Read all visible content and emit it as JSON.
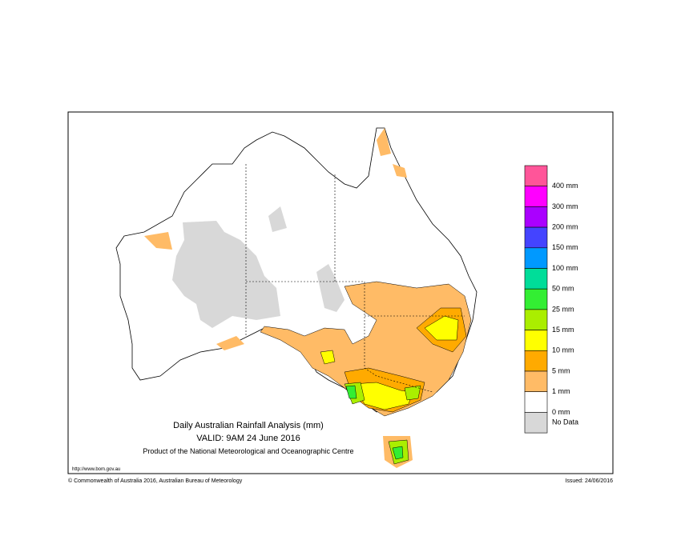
{
  "map": {
    "title": "Daily Australian Rainfall Analysis (mm)",
    "valid": "VALID: 9AM 24 June 2016",
    "product": "Product of the National Meteorological and Oceanographic Centre",
    "url": "http://www.bom.gov.au",
    "copyright": "© Commonwealth of Australia 2016, Australian Bureau of Meteorology",
    "issued": "Issued: 24/06/2016"
  },
  "legend": {
    "colors": [
      "#ff5599",
      "#ff00ff",
      "#aa00ff",
      "#4444ff",
      "#0099ff",
      "#00dd99",
      "#33ee33",
      "#aaee00",
      "#ffff00",
      "#ffaa00",
      "#ffbb66",
      "#ffffff",
      "#d8d8d8"
    ],
    "labels": [
      "400 mm",
      "300 mm",
      "200 mm",
      "150 mm",
      "100 mm",
      "50 mm",
      "25 mm",
      "15 mm",
      "10 mm",
      "5 mm",
      "1 mm",
      "0 mm",
      "No Data"
    ]
  }
}
